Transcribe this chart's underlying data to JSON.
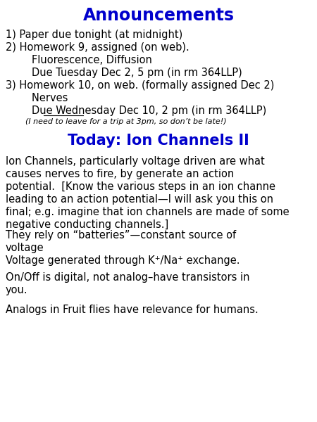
{
  "title": "Announcements",
  "title_color": "#0000CC",
  "title_fontsize": 17,
  "today_title": "Today: Ion Channels II",
  "today_color": "#0000CC",
  "today_fontsize": 15,
  "background_color": "#ffffff",
  "ann_lines": [
    {
      "text": "1) Paper due tonight (at midnight)",
      "indent": 0,
      "small": false
    },
    {
      "text": "2) Homework 9, assigned (on web).",
      "indent": 0,
      "small": false
    },
    {
      "text": "        Fluorescence, Diffusion",
      "indent": 1,
      "small": false
    },
    {
      "text": "        Due Tuesday Dec 2, 5 pm (in rm 364LLP)",
      "indent": 1,
      "small": false
    },
    {
      "text": "3) Homework 10, on web. (formally assigned Dec 2)",
      "indent": 0,
      "small": false
    },
    {
      "text": "        Nerves",
      "indent": 1,
      "small": false
    },
    {
      "text": "        Due Wednesday Dec 10, 2 pm (in rm 364LLP)",
      "indent": 1,
      "small": false,
      "underline_word": "Wednesday"
    },
    {
      "text": "        (I need to leave for a trip at 3pm, so don’t be late!)",
      "indent": 1,
      "small": true
    }
  ],
  "body_paras": [
    "Ion Channels, particularly voltage driven are what\ncauses nerves to fire, by generate an action\npotential.  [Know the various steps in an ion channe\nleading to an action potential—I will ask you this on\nfinal; e.g. imagine that ion channels are made of some\nnegative conducting channels.]",
    "They rely on “batteries”—constant source of\nvoltage\nVoltage generated through K⁺/Na⁺ exchange.",
    "On/Off is digital, not analog–have transistors in\nyou.",
    "Analogs in Fruit flies have relevance for humans."
  ],
  "ann_fontsize": 10.5,
  "small_fontsize": 8.0,
  "body_fontsize": 10.5,
  "figw": 4.5,
  "figh": 6.0,
  "dpi": 100
}
